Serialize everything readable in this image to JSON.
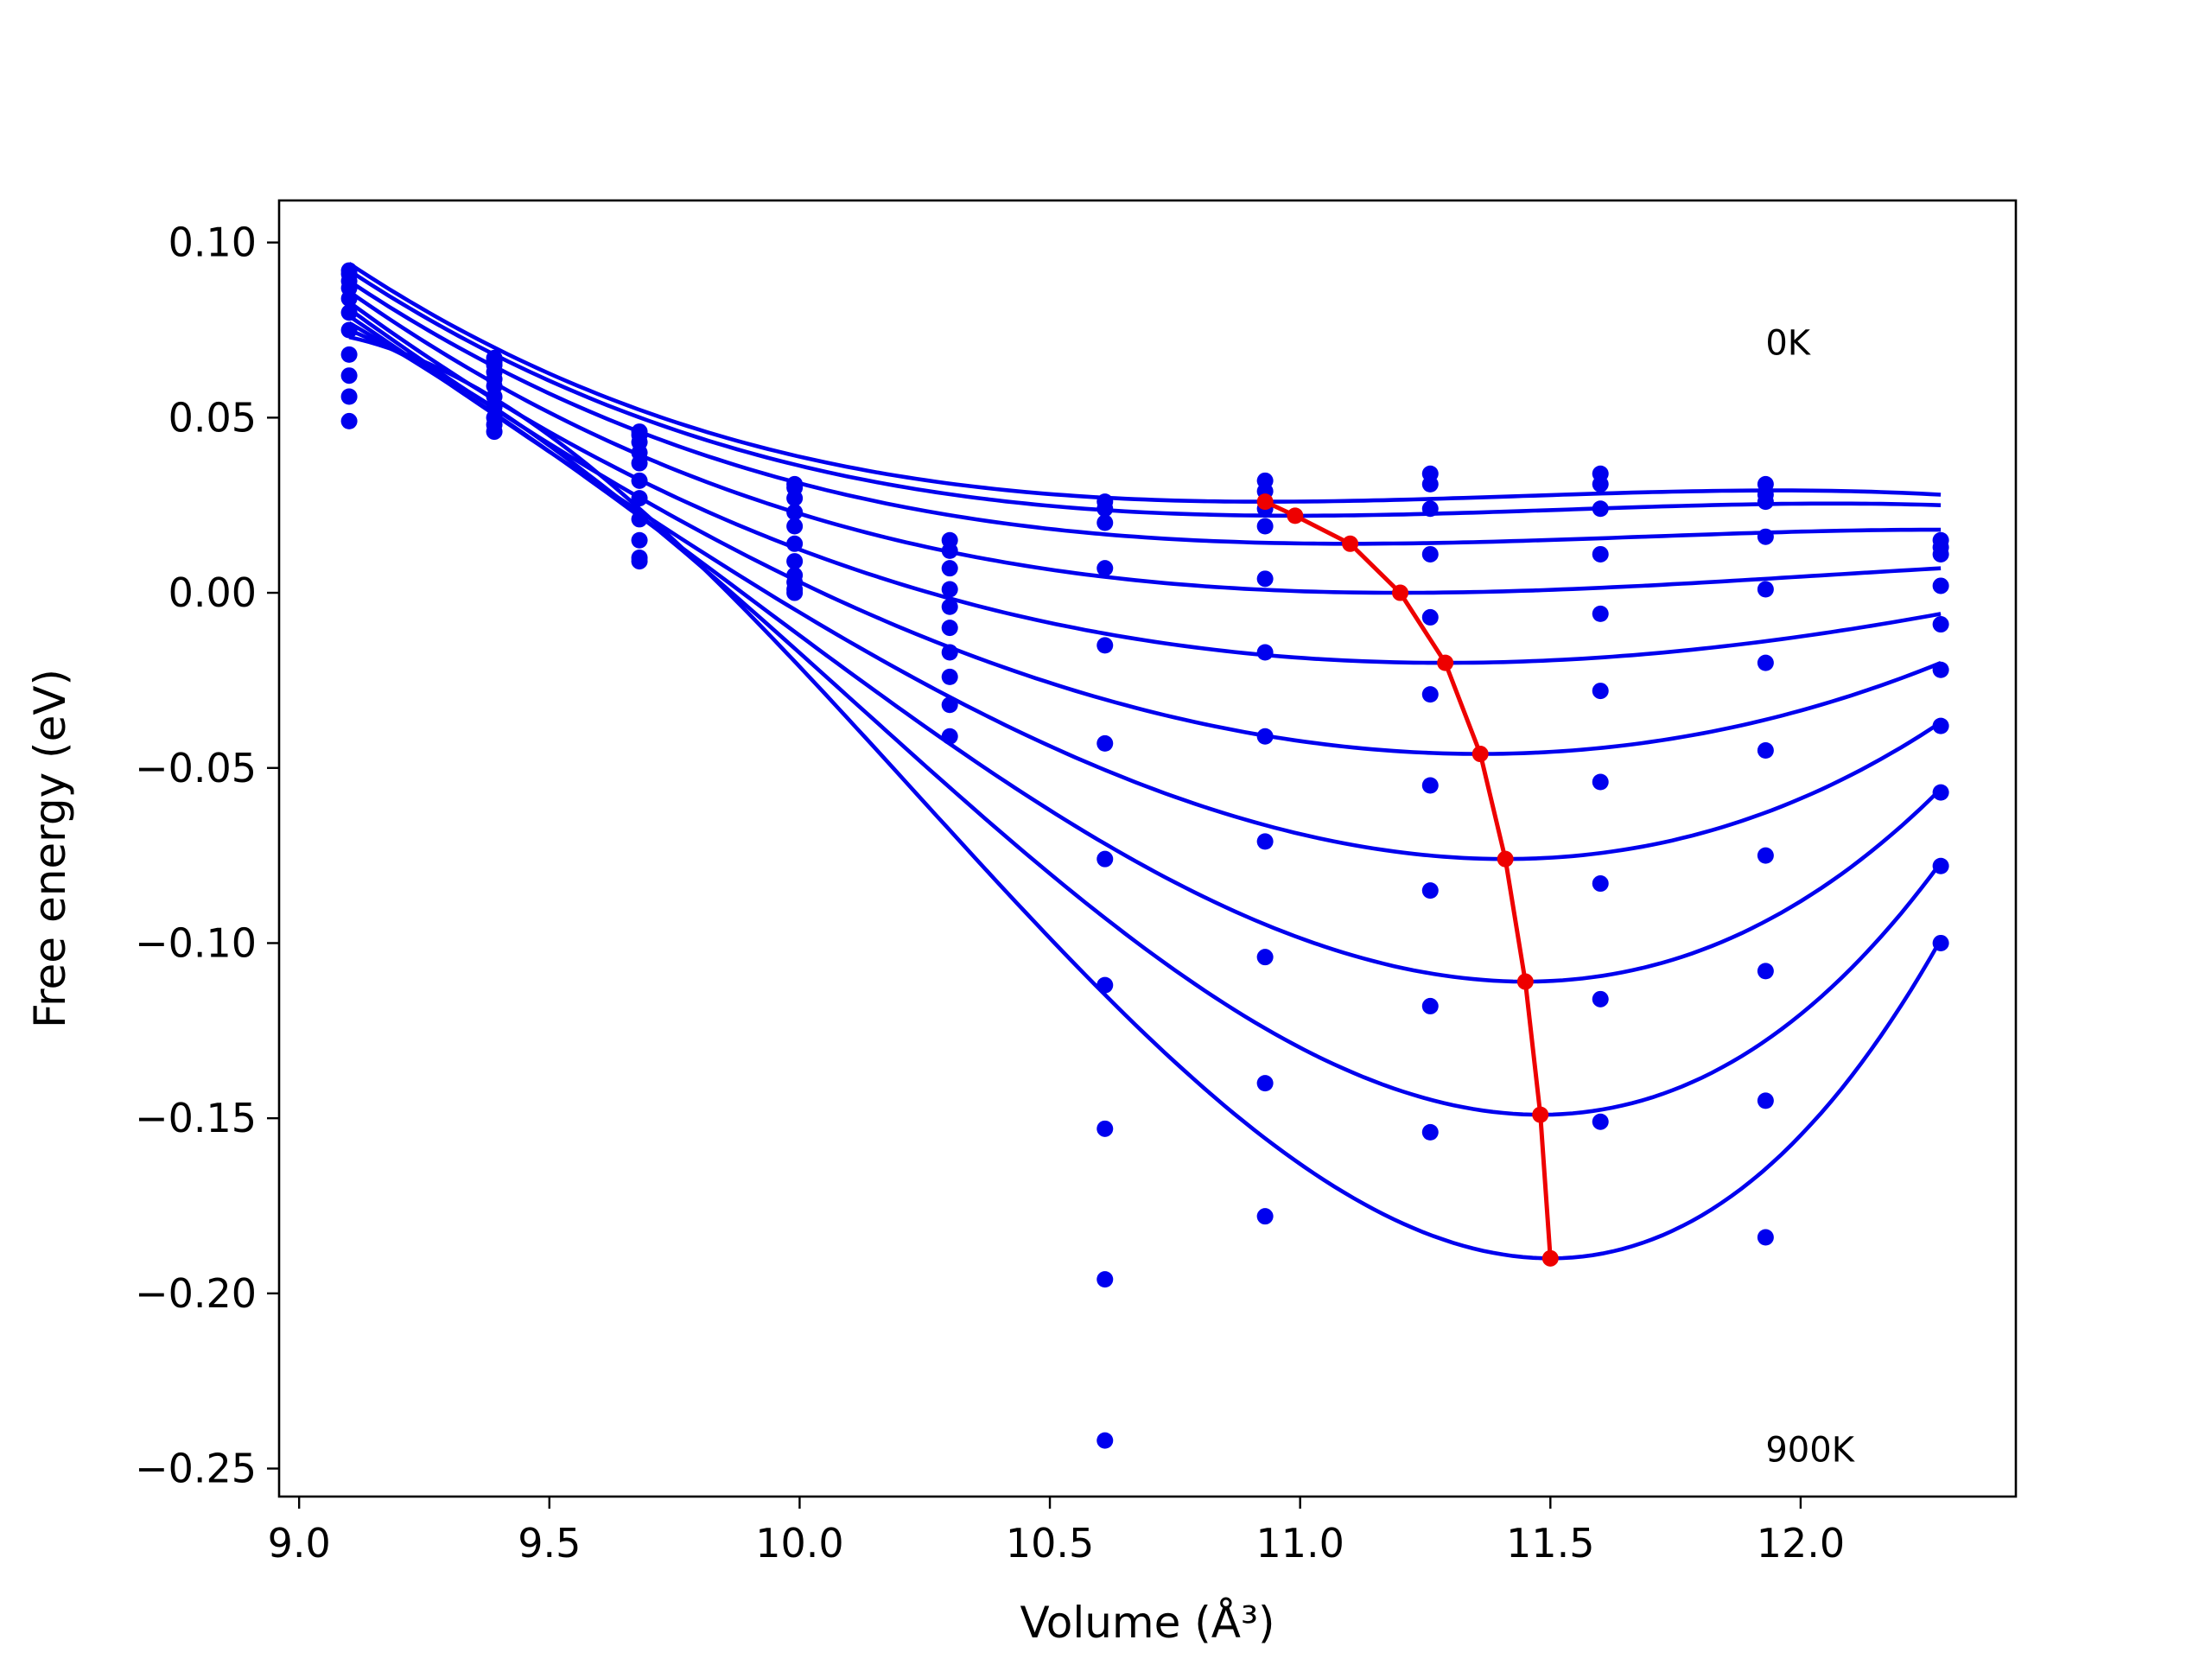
{
  "chart_data": {
    "type": "scatter",
    "xlabel": "Volume (Å³)",
    "ylabel": "Free energy (eV)",
    "xlim": [
      8.96,
      12.43
    ],
    "ylim": [
      -0.258,
      0.112
    ],
    "xticks": [
      "9.0",
      "9.5",
      "10.0",
      "10.5",
      "11.0",
      "11.5",
      "12.0"
    ],
    "xtick_values": [
      9.0,
      9.5,
      10.0,
      10.5,
      11.0,
      11.5,
      12.0
    ],
    "yticks": [
      "0.10",
      "0.05",
      "0.00",
      "−0.05",
      "−0.10",
      "−0.15",
      "−0.20",
      "−0.25"
    ],
    "ytick_values": [
      0.1,
      0.05,
      0.0,
      -0.05,
      -0.1,
      -0.15,
      -0.2,
      -0.25
    ],
    "annotations": [
      {
        "text": "0K",
        "x": 11.93,
        "y": 0.068
      },
      {
        "text": "900K",
        "x": 11.93,
        "y": -0.248
      }
    ],
    "colors": {
      "points": "#0000ee",
      "curves": "#0000ee",
      "minima": "#ee0000"
    },
    "volumes": [
      9.1,
      9.39,
      9.68,
      9.99,
      10.3,
      10.61,
      10.93,
      11.26,
      11.6,
      11.93,
      12.28
    ],
    "series": [
      {
        "temperature_index": 0,
        "values": [
          0.092,
          0.067,
          0.046,
          0.031,
          0.015,
          0.026,
          0.032,
          0.034,
          0.034,
          0.031,
          0.015
        ]
      },
      {
        "temperature_index": 1,
        "values": [
          0.091,
          0.066,
          0.045,
          0.03,
          0.012,
          0.024,
          0.029,
          0.031,
          0.031,
          0.028,
          0.013
        ]
      },
      {
        "temperature_index": 2,
        "values": [
          0.089,
          0.065,
          0.043,
          0.027,
          0.007,
          0.02,
          0.024,
          0.024,
          0.024,
          0.026,
          0.011
        ]
      },
      {
        "temperature_index": 3,
        "values": [
          0.087,
          0.063,
          0.04,
          0.023,
          0.001,
          0.007,
          0.019,
          0.011,
          0.011,
          0.016,
          0.002
        ]
      },
      {
        "temperature_index": 4,
        "values": [
          0.084,
          0.061,
          0.037,
          0.019,
          -0.004,
          -0.015,
          0.004,
          -0.007,
          -0.006,
          0.001,
          -0.009
        ]
      },
      {
        "temperature_index": 5,
        "values": [
          0.08,
          0.059,
          0.032,
          0.014,
          -0.01,
          -0.043,
          -0.017,
          -0.029,
          -0.028,
          -0.02,
          -0.022
        ]
      },
      {
        "temperature_index": 6,
        "values": [
          0.075,
          0.056,
          0.027,
          0.009,
          -0.017,
          -0.076,
          -0.041,
          -0.055,
          -0.054,
          -0.045,
          -0.038
        ]
      },
      {
        "temperature_index": 7,
        "values": [
          0.068,
          0.053,
          0.021,
          0.005,
          -0.024,
          -0.112,
          -0.071,
          -0.085,
          -0.083,
          -0.075,
          -0.057
        ]
      },
      {
        "temperature_index": 8,
        "values": [
          0.062,
          0.05,
          0.015,
          0.003,
          -0.032,
          -0.153,
          -0.104,
          -0.118,
          -0.116,
          -0.108,
          -0.078
        ]
      },
      {
        "temperature_index": 9,
        "values": [
          0.056,
          0.048,
          0.01,
          0.001,
          -0.041,
          -0.196,
          -0.14,
          -0.154,
          -0.151,
          -0.145,
          -0.1
        ]
      },
      {
        "temperature_index": 10,
        "values": [
          0.049,
          0.046,
          0.009,
          0.0,
          null,
          -0.242,
          -0.178,
          null,
          null,
          -0.184,
          null
        ]
      }
    ],
    "fit_curves": [
      {
        "temperature_index": 0,
        "vmin": 10.93,
        "fmin": 0.026,
        "start": 0.094,
        "end": 0.028
      },
      {
        "temperature_index": 1,
        "vmin": 10.99,
        "fmin": 0.022,
        "start": 0.092,
        "end": 0.025
      },
      {
        "temperature_index": 2,
        "vmin": 11.1,
        "fmin": 0.014,
        "start": 0.089,
        "end": 0.018
      },
      {
        "temperature_index": 3,
        "vmin": 11.2,
        "fmin": 0.0,
        "start": 0.086,
        "end": 0.007
      },
      {
        "temperature_index": 4,
        "vmin": 11.29,
        "fmin": -0.02,
        "start": 0.083,
        "end": -0.006
      },
      {
        "temperature_index": 5,
        "vmin": 11.36,
        "fmin": -0.046,
        "start": 0.081,
        "end": -0.02
      },
      {
        "temperature_index": 6,
        "vmin": 11.41,
        "fmin": -0.076,
        "start": 0.079,
        "end": -0.037
      },
      {
        "temperature_index": 7,
        "vmin": 11.45,
        "fmin": -0.111,
        "start": 0.077,
        "end": -0.056
      },
      {
        "temperature_index": 8,
        "vmin": 11.48,
        "fmin": -0.149,
        "start": 0.075,
        "end": -0.077
      },
      {
        "temperature_index": 9,
        "vmin": 11.5,
        "fmin": -0.19,
        "start": 0.073,
        "end": -0.099
      }
    ],
    "minima_line": {
      "x": [
        10.93,
        10.99,
        11.1,
        11.2,
        11.29,
        11.36,
        11.41,
        11.45,
        11.48,
        11.5
      ],
      "y": [
        0.026,
        0.022,
        0.014,
        0.0,
        -0.02,
        -0.046,
        -0.076,
        -0.111,
        -0.149,
        -0.19
      ]
    },
    "grid": false,
    "legend": "none"
  }
}
